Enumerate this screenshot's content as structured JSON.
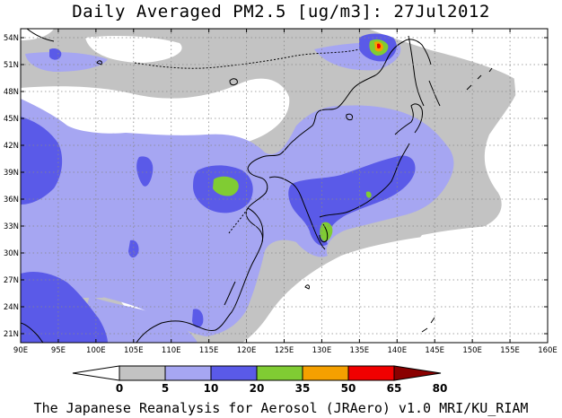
{
  "title": "Daily Averaged PM2.5 [ug/m3]: 27Jul2012",
  "credit": "The Japanese Reanalysis for Aerosol (JRAero) v1.0 MRI/KU_RIAM",
  "map": {
    "lon_range": [
      90,
      160
    ],
    "lat_range": [
      20,
      55
    ],
    "lon_ticks": [
      "90E",
      "95E",
      "100E",
      "105E",
      "110E",
      "115E",
      "120E",
      "125E",
      "130E",
      "135E",
      "140E",
      "145E",
      "150E",
      "155E",
      "160E"
    ],
    "lat_ticks": [
      "21N",
      "24N",
      "27N",
      "30N",
      "33N",
      "36N",
      "39N",
      "42N",
      "45N",
      "48N",
      "51N",
      "54N"
    ],
    "grid": true
  },
  "colorbar": {
    "labels": [
      "0",
      "5",
      "10",
      "20",
      "35",
      "50",
      "65",
      "80"
    ],
    "colors": [
      "#ffffff",
      "#c3c3c3",
      "#a6a6f2",
      "#5a5ae8",
      "#80cc33",
      "#f5a000",
      "#f00000",
      "#8a0000"
    ]
  }
}
